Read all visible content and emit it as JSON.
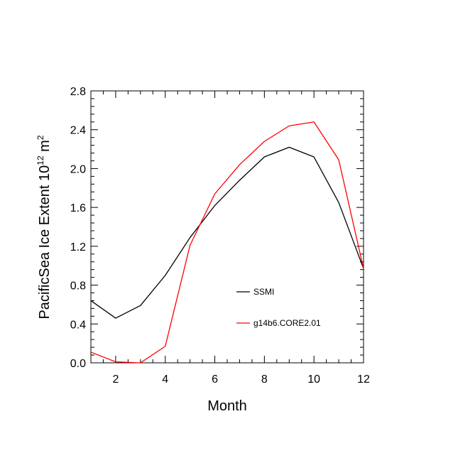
{
  "chart_data": {
    "type": "line",
    "xlabel": "Month",
    "ylabel": "PacificSea Ice Extent 10",
    "ylabel_exponent": "12",
    "ylabel_unit": " m",
    "ylabel_unit_exponent": "2",
    "xlim": [
      1,
      12
    ],
    "ylim": [
      0.0,
      2.8
    ],
    "x_ticks": [
      2,
      4,
      6,
      8,
      10,
      12
    ],
    "x_tick_labels": [
      "2",
      "4",
      "6",
      "8",
      "10",
      "12"
    ],
    "y_ticks": [
      0.0,
      0.4,
      0.8,
      1.2,
      1.6,
      2.0,
      2.4,
      2.8
    ],
    "y_tick_labels": [
      "0.0",
      "0.4",
      "0.8",
      "1.2",
      "1.6",
      "2.0",
      "2.4",
      "2.8"
    ],
    "grid": false,
    "legend_position": "inside-lower-right",
    "x": [
      1,
      2,
      3,
      4,
      5,
      6,
      7,
      8,
      9,
      10,
      11,
      12
    ],
    "series": [
      {
        "name": "SSMI",
        "color": "#000000",
        "values": [
          0.64,
          0.46,
          0.59,
          0.9,
          1.29,
          1.62,
          1.88,
          2.12,
          2.22,
          2.12,
          1.65,
          0.97
        ]
      },
      {
        "name": "g14b6.CORE2.01",
        "color": "#ff0000",
        "values": [
          0.11,
          0.01,
          0.0,
          0.17,
          1.21,
          1.74,
          2.04,
          2.28,
          2.44,
          2.48,
          2.09,
          0.97
        ]
      }
    ]
  }
}
